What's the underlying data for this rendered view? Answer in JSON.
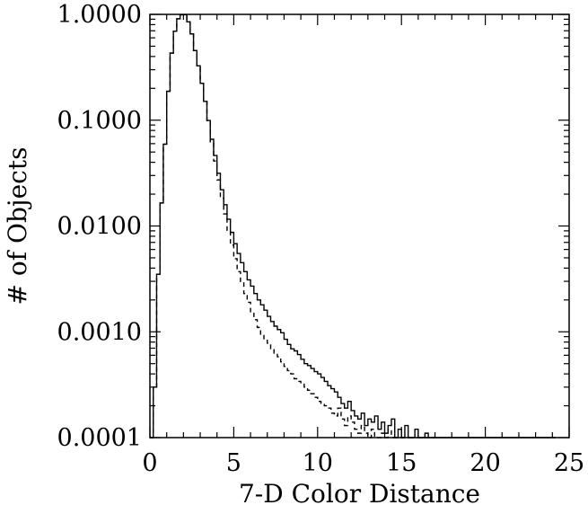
{
  "chart_data": {
    "type": "line",
    "title": "",
    "xlabel": "7-D Color Distance",
    "ylabel": "# of Objects",
    "xlim": [
      0,
      25
    ],
    "ylim": [
      0.0001,
      1.0
    ],
    "yscale": "log",
    "xticks": [
      0,
      5,
      10,
      15,
      20,
      25
    ],
    "xtick_labels": [
      "0",
      "5",
      "10",
      "15",
      "20",
      "25"
    ],
    "yticks": [
      0.0001,
      0.001,
      0.01,
      0.1,
      1.0
    ],
    "ytick_labels": [
      "0.0001",
      "0.0010",
      "0.0100",
      "0.1000",
      "1.0000"
    ],
    "grid": false,
    "legend": "none",
    "bin_width": 0.2,
    "series": [
      {
        "style": "solid",
        "x": [
          0.0,
          0.2,
          0.4,
          0.6,
          0.8,
          1.0,
          1.2,
          1.4,
          1.6,
          1.8,
          2.0,
          2.2,
          2.4,
          2.6,
          2.8,
          3.0,
          3.2,
          3.4,
          3.6,
          3.8,
          4.0,
          4.2,
          4.4,
          4.6,
          4.8,
          5.0,
          5.2,
          5.4,
          5.6,
          5.8,
          6.0,
          6.2,
          6.4,
          6.6,
          6.8,
          7.0,
          7.2,
          7.4,
          7.6,
          7.8,
          8.0,
          8.2,
          8.4,
          8.6,
          8.8,
          9.0,
          9.2,
          9.4,
          9.6,
          9.8,
          10.0,
          10.2,
          10.4,
          10.6,
          10.8,
          11.0,
          11.2,
          11.4,
          11.6,
          11.8,
          12.0,
          12.2,
          12.4,
          12.6,
          12.8,
          13.0,
          13.2,
          13.4,
          13.6,
          13.8,
          14.0,
          14.2,
          14.4,
          14.6,
          14.8,
          15.0,
          15.2,
          15.4,
          15.6,
          15.8,
          16.0,
          16.2,
          16.4,
          16.6,
          16.8,
          17.0,
          17.2,
          17.4,
          17.6,
          17.8,
          18.0,
          18.2,
          18.4,
          18.6,
          18.8,
          19.0,
          19.2,
          19.4,
          19.6,
          19.8,
          20.0,
          20.2,
          20.4,
          20.6,
          20.8,
          21.0,
          21.2,
          21.4,
          21.6,
          21.8,
          22.0,
          22.2,
          22.4,
          22.6,
          22.8,
          23.0,
          23.2,
          23.4,
          23.6,
          23.8,
          24.0
        ],
        "y": [
          0.0001,
          0.0003,
          0.0035,
          0.0165,
          0.0593,
          0.1878,
          0.4308,
          0.6938,
          0.9075,
          0.9928,
          0.9928,
          0.8497,
          0.6536,
          0.455,
          0.3268,
          0.2232,
          0.1506,
          0.0993,
          0.066,
          0.0464,
          0.0315,
          0.022,
          0.0159,
          0.0116,
          0.0087,
          0.0068,
          0.0055,
          0.0045,
          0.0037,
          0.0031,
          0.0027,
          0.0023,
          0.002,
          0.0018,
          0.0016,
          0.0014,
          0.00125,
          0.00113,
          0.00105,
          0.00098,
          0.00085,
          0.00076,
          0.00069,
          0.00066,
          0.00061,
          0.00055,
          0.0005,
          0.00048,
          0.00045,
          0.00042,
          0.0004,
          0.00037,
          0.00034,
          0.00031,
          0.00029,
          0.00027,
          0.00024,
          0.00021,
          0.00019,
          0.00022,
          0.00018,
          0.00016,
          0.00015,
          0.00017,
          0.00013,
          0.00015,
          0.00014,
          0.00016,
          0.00012,
          0.00014,
          0.00011,
          0.00013,
          0.00015,
          0.0001,
          0.00012,
          0.0001,
          0.00013,
          0.0001,
          0.0001,
          0.00012,
          0.0001,
          0.0001,
          0.00011,
          0.0001,
          0.0001,
          0.0001,
          0.0001,
          0.0001,
          0.0001,
          0.0001,
          0.0001,
          0.0001,
          0.0001,
          0.0001,
          0.0001,
          0.0001,
          0.0001,
          0.0001,
          0.0001,
          0.0001,
          0.0001,
          0.0001,
          0.0001,
          0.0001,
          0.0001,
          0.0001,
          0.0001,
          0.0001,
          0.0001,
          0.0001,
          0.0001,
          0.0001,
          0.0001,
          0.0001,
          0.0001,
          0.0001,
          0.0001,
          0.0001,
          0.0001,
          0.0001,
          0.0001
        ]
      },
      {
        "style": "dashed",
        "x": [
          0.0,
          0.2,
          0.4,
          0.6,
          0.8,
          1.0,
          1.2,
          1.4,
          1.6,
          1.8,
          2.0,
          2.2,
          2.4,
          2.6,
          2.8,
          3.0,
          3.2,
          3.4,
          3.6,
          3.8,
          4.0,
          4.2,
          4.4,
          4.6,
          4.8,
          5.0,
          5.2,
          5.4,
          5.6,
          5.8,
          6.0,
          6.2,
          6.4,
          6.6,
          6.8,
          7.0,
          7.2,
          7.4,
          7.6,
          7.8,
          8.0,
          8.2,
          8.4,
          8.6,
          8.8,
          9.0,
          9.2,
          9.4,
          9.6,
          9.8,
          10.0,
          10.2,
          10.4,
          10.6,
          10.8,
          11.0,
          11.2,
          11.4,
          11.6,
          11.8,
          12.0,
          12.2,
          12.4,
          12.6,
          12.8,
          13.0,
          13.2,
          13.4,
          13.6,
          13.8,
          14.0,
          14.2,
          14.4,
          14.6,
          14.8,
          15.0,
          15.2,
          15.4,
          15.6,
          15.8,
          16.0,
          16.2,
          16.4,
          16.6,
          16.8
        ],
        "y": [
          0.0001,
          0.0003,
          0.0035,
          0.0165,
          0.0593,
          0.1878,
          0.4308,
          0.6938,
          0.9075,
          0.9928,
          0.9928,
          0.8497,
          0.6536,
          0.455,
          0.3268,
          0.2232,
          0.1506,
          0.0993,
          0.0604,
          0.0411,
          0.0273,
          0.0183,
          0.013,
          0.0091,
          0.0066,
          0.0049,
          0.0037,
          0.0029,
          0.0023,
          0.0019,
          0.0015,
          0.0013,
          0.0011,
          0.00095,
          0.00086,
          0.00078,
          0.00069,
          0.00063,
          0.00058,
          0.00052,
          0.00047,
          0.00043,
          0.0004,
          0.00036,
          0.00034,
          0.00032,
          0.0003,
          0.00028,
          0.00026,
          0.00024,
          0.00022,
          0.00021,
          0.0002,
          0.00019,
          0.00017,
          0.00016,
          0.00019,
          0.00015,
          0.00013,
          0.00016,
          0.00014,
          0.00012,
          0.00011,
          0.00013,
          0.00011,
          0.0001,
          0.00012,
          0.0001,
          0.0001,
          0.00011,
          0.0001,
          0.00012,
          0.0001,
          0.0001,
          0.0001,
          0.0001,
          0.0001,
          0.0001,
          0.0001,
          0.0001,
          0.0001,
          0.0001,
          0.0001,
          0.0001,
          0.0001
        ]
      }
    ]
  }
}
